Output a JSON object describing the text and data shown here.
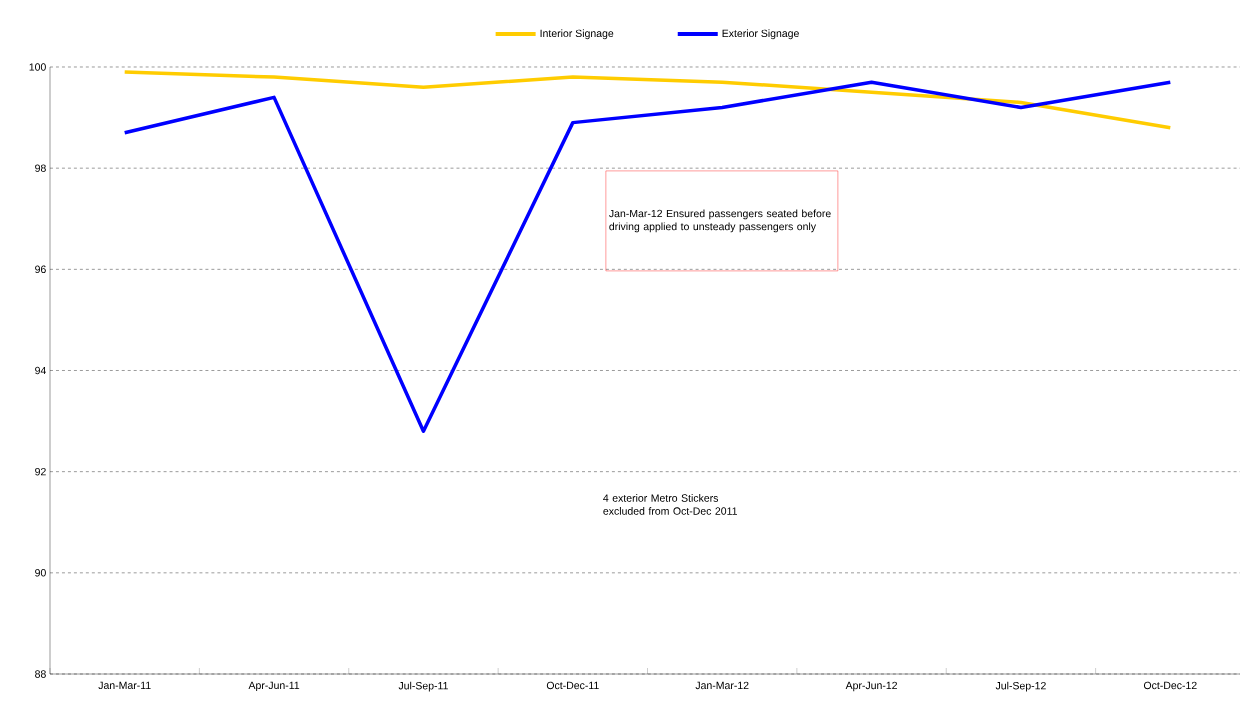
{
  "chart_data": {
    "type": "line",
    "categories": [
      "Jan-Mar-11",
      "Apr-Jun-11",
      "Jul-Sep-11",
      "Oct-Dec-11",
      "Jan-Mar-12",
      "Apr-Jun-12",
      "Jul-Sep-12",
      "Oct-Dec-12"
    ],
    "series": [
      {
        "name": "Interior Signage",
        "color": "#ffcc00",
        "values": [
          99.9,
          99.8,
          99.6,
          99.8,
          99.7,
          99.5,
          99.3,
          98.8
        ]
      },
      {
        "name": "Exterior Signage",
        "color": "#0000ff",
        "values": [
          98.7,
          99.4,
          92.8,
          98.9,
          99.2,
          99.7,
          99.2,
          99.7
        ]
      }
    ],
    "ylim": [
      88,
      100
    ],
    "yticks": [
      88,
      90,
      92,
      94,
      96,
      98,
      100
    ],
    "grid": "y",
    "legend": "top",
    "marker": "none",
    "line_style": "solid",
    "annotations": [
      "Jan-Mar-12 Ensured passengers seated before driving applied to unsteady passengers only",
      "4 exterior Metro Stickers excluded from Oct-Dec 2011"
    ]
  }
}
